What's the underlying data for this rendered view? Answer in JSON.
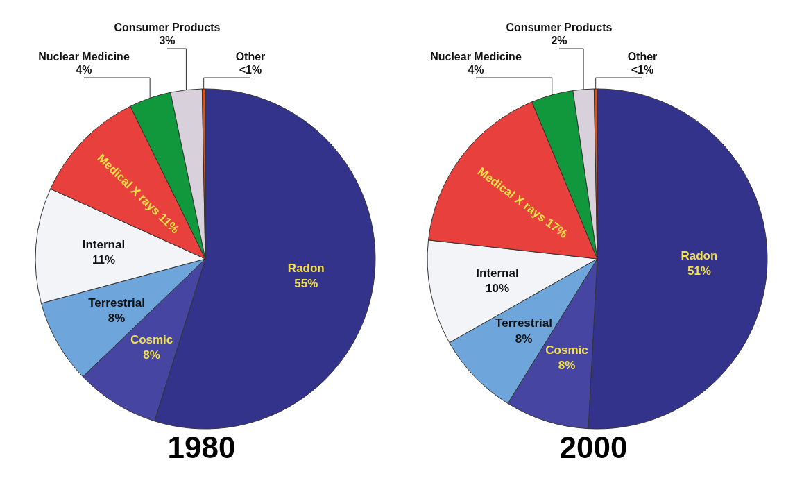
{
  "chart_data": [
    {
      "type": "pie",
      "title": "1980",
      "categories": [
        "Radon",
        "Cosmic",
        "Terrestrial",
        "Internal",
        "Medical X rays",
        "Nuclear Medicine",
        "Consumer Products",
        "Other"
      ],
      "values": [
        55,
        8,
        8,
        11,
        11,
        4,
        3,
        0.3
      ],
      "value_labels": [
        "55%",
        "8%",
        "8%",
        "11%",
        "11%",
        "4%",
        "3%",
        "<1%"
      ],
      "colors": [
        "#33338c",
        "#4646a2",
        "#6ea6dc",
        "#f2f4f8",
        "#e8403c",
        "#12983c",
        "#d8d0da",
        "#e0501a"
      ]
    },
    {
      "type": "pie",
      "title": "2000",
      "categories": [
        "Radon",
        "Cosmic",
        "Terrestrial",
        "Internal",
        "Medical X rays",
        "Nuclear Medicine",
        "Consumer Products",
        "Other"
      ],
      "values": [
        51,
        8,
        8,
        10,
        17,
        4,
        2,
        0.3
      ],
      "value_labels": [
        "51%",
        "8%",
        "8%",
        "10%",
        "17%",
        "4%",
        "2%",
        "<1%"
      ],
      "colors": [
        "#33338c",
        "#4646a2",
        "#6ea6dc",
        "#f2f4f8",
        "#e8403c",
        "#12983c",
        "#d8d0da",
        "#e0501a"
      ]
    }
  ]
}
